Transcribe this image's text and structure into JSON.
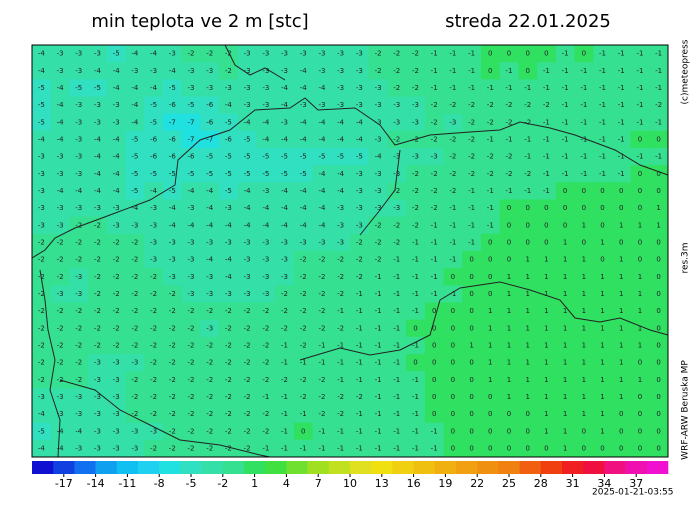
{
  "header": {
    "title": "min teplota ve 2 m [stc]",
    "date": "streda 22.01.2025"
  },
  "side_labels": {
    "copyright": "(c)meteopress",
    "resolution": "res.3m",
    "model": "WRF-ARW Beruska MP"
  },
  "timestamp": "2025-01-21-03:55",
  "grid": [
    [
      -4,
      -3,
      -3,
      -3,
      -5,
      -4,
      -4,
      -3,
      -2,
      -2,
      -2,
      -3,
      -3,
      -3,
      -3,
      -3,
      -3,
      -3,
      -2,
      -2,
      -2,
      -1,
      -1,
      -1,
      0,
      0,
      0,
      0,
      -1,
      0,
      -1,
      -1,
      -1,
      -1
    ],
    [
      -4,
      -3,
      -3,
      -4,
      -4,
      -3,
      -3,
      -4,
      -3,
      -3,
      -2,
      -3,
      -3,
      -3,
      -4,
      -3,
      -3,
      -3,
      -2,
      -2,
      -2,
      -1,
      -1,
      -1,
      0,
      -1,
      0,
      -1,
      -1,
      -1,
      -1,
      -1,
      -1,
      -1
    ],
    [
      -5,
      -4,
      -5,
      -5,
      -4,
      -4,
      -4,
      -5,
      -3,
      -3,
      -3,
      -3,
      -3,
      -4,
      -4,
      -4,
      -3,
      -3,
      -3,
      -2,
      -2,
      -1,
      -1,
      -1,
      -1,
      -1,
      -1,
      -1,
      -1,
      -1,
      -1,
      -1,
      -1,
      -1
    ],
    [
      -5,
      -4,
      -3,
      -3,
      -3,
      -4,
      -5,
      -6,
      -5,
      -6,
      -4,
      -3,
      -3,
      -4,
      -3,
      -3,
      -3,
      -3,
      -3,
      -3,
      -3,
      -2,
      -2,
      -2,
      -2,
      -2,
      -2,
      -2,
      -1,
      -1,
      -1,
      -1,
      -1,
      -2
    ],
    [
      -5,
      -4,
      -3,
      -3,
      -3,
      -4,
      -5,
      -7,
      -7,
      -6,
      -5,
      -4,
      -4,
      -3,
      -4,
      -4,
      -4,
      -4,
      -3,
      -3,
      -3,
      -2,
      -3,
      -2,
      -2,
      -2,
      -2,
      -1,
      -1,
      -1,
      -1,
      -1,
      -1,
      -1
    ],
    [
      -4,
      -4,
      -3,
      -4,
      -4,
      -5,
      -6,
      -6,
      -7,
      -7,
      -6,
      -5,
      -4,
      -4,
      -4,
      -4,
      -4,
      -4,
      -3,
      -2,
      -2,
      -2,
      -2,
      -2,
      -1,
      -1,
      -1,
      -1,
      -1,
      -1,
      -1,
      -1,
      0,
      0
    ],
    [
      -3,
      -3,
      -3,
      -4,
      -4,
      -5,
      -6,
      -6,
      -6,
      -5,
      -5,
      -5,
      -5,
      -5,
      -5,
      -5,
      -5,
      -5,
      -4,
      -3,
      -3,
      -3,
      -2,
      -2,
      -2,
      -2,
      -1,
      -1,
      -1,
      -1,
      -1,
      -1,
      -1,
      -1
    ],
    [
      -3,
      -3,
      -3,
      -4,
      -4,
      -5,
      -5,
      -5,
      -5,
      -5,
      -5,
      -5,
      -5,
      -5,
      -5,
      -4,
      -4,
      -3,
      -3,
      -3,
      -2,
      -2,
      -2,
      -2,
      -2,
      -2,
      -2,
      -1,
      -1,
      -1,
      -1,
      -1,
      0,
      0
    ],
    [
      -3,
      -4,
      -4,
      -4,
      -4,
      -5,
      -4,
      -5,
      -4,
      -4,
      -5,
      -4,
      -3,
      -4,
      -4,
      -4,
      -4,
      -3,
      -3,
      -2,
      -2,
      -2,
      -2,
      -1,
      -1,
      -1,
      -1,
      -1,
      0,
      0,
      0,
      0,
      0,
      0
    ],
    [
      -3,
      -3,
      -3,
      -3,
      -3,
      -4,
      -3,
      -4,
      -3,
      -4,
      -3,
      -4,
      -4,
      -4,
      -4,
      -4,
      -3,
      -3,
      -3,
      -3,
      -2,
      -2,
      -1,
      -1,
      -1,
      0,
      0,
      0,
      0,
      0,
      0,
      0,
      0,
      1
    ],
    [
      -3,
      -3,
      -2,
      -2,
      -3,
      -3,
      -3,
      -4,
      -4,
      -4,
      -4,
      -4,
      -4,
      -4,
      -4,
      -4,
      -3,
      -3,
      -2,
      -2,
      -2,
      -1,
      -1,
      -1,
      -1,
      0,
      0,
      0,
      0,
      1,
      0,
      1,
      1,
      1
    ],
    [
      -2,
      -2,
      -2,
      -2,
      -2,
      -2,
      -3,
      -3,
      -3,
      -3,
      -3,
      -3,
      -3,
      -3,
      -3,
      -3,
      -3,
      -2,
      -2,
      -2,
      -1,
      -1,
      -1,
      -1,
      0,
      0,
      0,
      0,
      1,
      0,
      1,
      0,
      0,
      0
    ],
    [
      -2,
      -2,
      -2,
      -2,
      -2,
      -2,
      -3,
      -3,
      -3,
      -4,
      -4,
      -3,
      -3,
      -3,
      -2,
      -2,
      -2,
      -2,
      -2,
      -1,
      -1,
      -1,
      -1,
      0,
      0,
      0,
      1,
      1,
      1,
      1,
      0,
      1,
      0,
      0
    ],
    [
      -2,
      -2,
      -3,
      -2,
      -2,
      -2,
      -2,
      -3,
      -3,
      -3,
      -4,
      -3,
      -3,
      -3,
      -2,
      -2,
      -2,
      -2,
      -1,
      -1,
      -1,
      -1,
      0,
      0,
      0,
      1,
      1,
      1,
      1,
      1,
      1,
      1,
      1,
      0
    ],
    [
      -2,
      -3,
      -3,
      -2,
      -2,
      -2,
      -2,
      -2,
      -3,
      -3,
      -3,
      -3,
      -3,
      -2,
      -2,
      -2,
      -2,
      -1,
      -1,
      -1,
      -1,
      -1,
      -1,
      0,
      0,
      1,
      1,
      1,
      1,
      1,
      1,
      1,
      1,
      0
    ],
    [
      -2,
      -2,
      -2,
      -2,
      -2,
      -2,
      -2,
      -2,
      -2,
      -2,
      -2,
      -2,
      -2,
      -2,
      -2,
      -2,
      -1,
      -1,
      -1,
      -1,
      -1,
      0,
      0,
      0,
      1,
      1,
      1,
      1,
      1,
      1,
      1,
      1,
      1,
      0
    ],
    [
      -2,
      -2,
      -2,
      -2,
      -2,
      -2,
      -2,
      -2,
      -2,
      -3,
      -2,
      -2,
      -2,
      -2,
      -2,
      -2,
      -2,
      -1,
      -1,
      -1,
      0,
      0,
      0,
      0,
      1,
      1,
      1,
      1,
      1,
      1,
      1,
      1,
      1,
      0
    ],
    [
      -2,
      -2,
      -2,
      -2,
      -2,
      -2,
      -2,
      -2,
      -2,
      -2,
      -2,
      -2,
      -2,
      -1,
      -2,
      -1,
      -1,
      -1,
      -1,
      -1,
      -1,
      0,
      0,
      1,
      1,
      1,
      1,
      1,
      1,
      1,
      1,
      1,
      1,
      0
    ],
    [
      -2,
      -2,
      -2,
      -3,
      -3,
      -3,
      -2,
      -2,
      -2,
      -2,
      -2,
      -2,
      -2,
      -1,
      -1,
      -1,
      -1,
      -1,
      -1,
      -1,
      0,
      0,
      0,
      0,
      1,
      1,
      1,
      1,
      1,
      1,
      1,
      1,
      0,
      0
    ],
    [
      -2,
      -2,
      -2,
      -3,
      -3,
      -2,
      -2,
      -2,
      -2,
      -2,
      -2,
      -2,
      -2,
      -2,
      -2,
      -2,
      -1,
      -1,
      -1,
      -1,
      -1,
      0,
      0,
      0,
      1,
      1,
      1,
      1,
      1,
      1,
      1,
      1,
      1,
      0
    ],
    [
      -3,
      -3,
      -3,
      -3,
      -3,
      -2,
      -2,
      -2,
      -2,
      -2,
      -2,
      -2,
      -1,
      -1,
      -2,
      -2,
      -2,
      -2,
      -1,
      -1,
      -1,
      0,
      0,
      0,
      0,
      1,
      1,
      1,
      1,
      1,
      1,
      1,
      0,
      0
    ],
    [
      -4,
      -3,
      -3,
      -3,
      -3,
      -2,
      -2,
      -2,
      -2,
      -2,
      -2,
      -2,
      -2,
      -1,
      -1,
      -2,
      -2,
      -1,
      -1,
      -1,
      -1,
      0,
      0,
      0,
      0,
      0,
      0,
      1,
      1,
      1,
      1,
      0,
      0,
      0
    ],
    [
      -5,
      -4,
      -4,
      -3,
      -3,
      -3,
      -3,
      -2,
      -2,
      -2,
      -2,
      -2,
      -2,
      -1,
      0,
      -1,
      -1,
      -1,
      -1,
      -1,
      -1,
      -1,
      0,
      0,
      0,
      0,
      0,
      1,
      1,
      0,
      1,
      0,
      0,
      0
    ],
    [
      -4,
      -4,
      -3,
      -3,
      -3,
      -3,
      -2,
      -2,
      -2,
      -2,
      -2,
      -2,
      -1,
      -1,
      -1,
      -1,
      -1,
      -1,
      -1,
      -1,
      -1,
      -1,
      0,
      0,
      0,
      0,
      0,
      0,
      1,
      0,
      0,
      0,
      0,
      0
    ]
  ],
  "colorbar": {
    "lim": [
      -20,
      40
    ],
    "ticks": [
      -17,
      -14,
      -11,
      -8,
      -5,
      -2,
      1,
      4,
      7,
      10,
      13,
      16,
      19,
      22,
      25,
      28,
      31,
      34,
      37
    ],
    "colors": [
      "#1010d0",
      "#1040e0",
      "#1070f0",
      "#10a0f0",
      "#10c0f0",
      "#20d0f0",
      "#20e0e0",
      "#30e0c0",
      "#35e0a8",
      "#35e090",
      "#30e060",
      "#40e040",
      "#70e030",
      "#a0e020",
      "#c0e020",
      "#e0e020",
      "#f0e010",
      "#f0d010",
      "#f0c010",
      "#f0b010",
      "#f0a010",
      "#f09010",
      "#f08010",
      "#f06010",
      "#f04010",
      "#f02020",
      "#f01040",
      "#f01080",
      "#f010b0",
      "#f010d0"
    ]
  }
}
